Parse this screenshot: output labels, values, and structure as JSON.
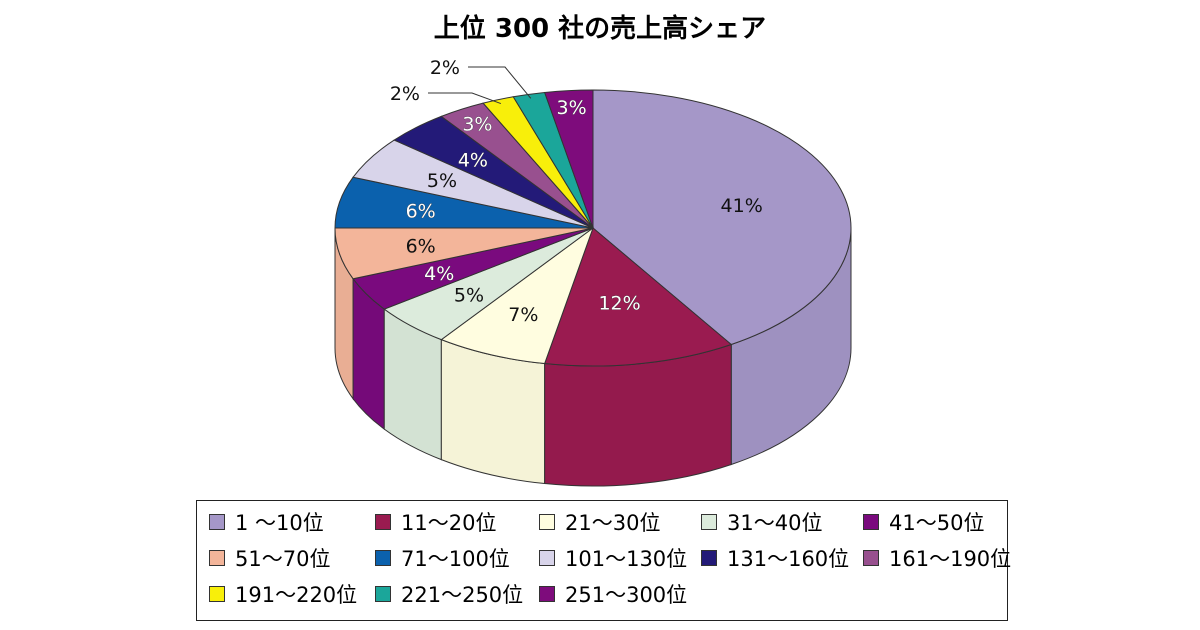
{
  "chart_data": {
    "type": "pie",
    "title": "上位 300 社の売上高シェア",
    "categories": [
      "1 ～10位",
      "11～20位",
      "21～30位",
      "31～40位",
      "41～50位",
      "51～70位",
      "71～100位",
      "101～130位",
      "131～160位",
      "161～190位",
      "191～220位",
      "221～250位",
      "251～300位"
    ],
    "values": [
      41,
      12,
      7,
      5,
      4,
      6,
      6,
      5,
      4,
      3,
      2,
      2,
      3
    ],
    "value_labels": [
      "41%",
      "12%",
      "7%",
      "5%",
      "4%",
      "6%",
      "6%",
      "5%",
      "4%",
      "3%",
      "2%",
      "2%",
      "3%"
    ],
    "colors": [
      "#a597c8",
      "#9a1b50",
      "#fffde0",
      "#dcebdc",
      "#7a0a7e",
      "#f3b59a",
      "#0b61ad",
      "#d8d4ea",
      "#231a78",
      "#98508f",
      "#f8ef0a",
      "#1ba69a",
      "#7e0c7c"
    ],
    "legend_position": "bottom",
    "three_d": true
  }
}
